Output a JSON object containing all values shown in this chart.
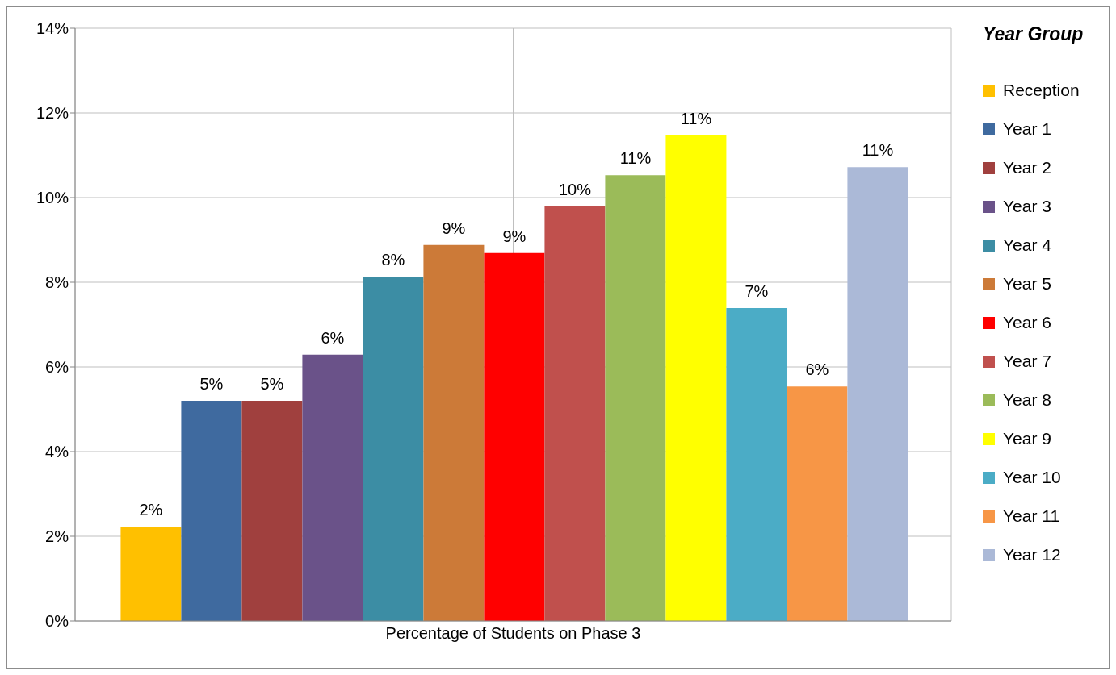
{
  "chart_data": {
    "type": "bar",
    "categories": [
      "Percentage of Students on Phase 3"
    ],
    "legend_title": "Year Group",
    "legend": "right",
    "grid": true,
    "ylim": [
      0,
      14
    ],
    "yticks": [
      {
        "value": 0,
        "label": "0%"
      },
      {
        "value": 2,
        "label": "2%"
      },
      {
        "value": 4,
        "label": "4%"
      },
      {
        "value": 6,
        "label": "6%"
      },
      {
        "value": 8,
        "label": "8%"
      },
      {
        "value": 10,
        "label": "10%"
      },
      {
        "value": 12,
        "label": "12%"
      },
      {
        "value": 14,
        "label": "14%"
      }
    ],
    "series": [
      {
        "name": "Reception",
        "color": "#ffc000",
        "values": [
          2.23
        ],
        "value_labels": [
          "2%"
        ]
      },
      {
        "name": "Year 1",
        "color": "#3f6a9f",
        "values": [
          5.2
        ],
        "value_labels": [
          "5%"
        ]
      },
      {
        "name": "Year 2",
        "color": "#a0403e",
        "values": [
          5.2
        ],
        "value_labels": [
          "5%"
        ]
      },
      {
        "name": "Year 3",
        "color": "#6a5289",
        "values": [
          6.29
        ],
        "value_labels": [
          "6%"
        ]
      },
      {
        "name": "Year 4",
        "color": "#3c8da4",
        "values": [
          8.13
        ],
        "value_labels": [
          "8%"
        ]
      },
      {
        "name": "Year 5",
        "color": "#cc7a38",
        "values": [
          8.88
        ],
        "value_labels": [
          "9%"
        ]
      },
      {
        "name": "Year 6",
        "color": "#ff0000",
        "values": [
          8.69
        ],
        "value_labels": [
          "9%"
        ]
      },
      {
        "name": "Year 7",
        "color": "#c0504d",
        "values": [
          9.79
        ],
        "value_labels": [
          "10%"
        ]
      },
      {
        "name": "Year 8",
        "color": "#9bbb59",
        "values": [
          10.53
        ],
        "value_labels": [
          "11%"
        ]
      },
      {
        "name": "Year 9",
        "color": "#ffff00",
        "values": [
          11.47
        ],
        "value_labels": [
          "11%"
        ]
      },
      {
        "name": "Year 10",
        "color": "#4bacc6",
        "values": [
          7.39
        ],
        "value_labels": [
          "7%"
        ]
      },
      {
        "name": "Year 11",
        "color": "#f79646",
        "values": [
          5.54
        ],
        "value_labels": [
          "6%"
        ]
      },
      {
        "name": "Year 12",
        "color": "#abb9d7",
        "values": [
          10.72
        ],
        "value_labels": [
          "11%"
        ]
      }
    ]
  }
}
